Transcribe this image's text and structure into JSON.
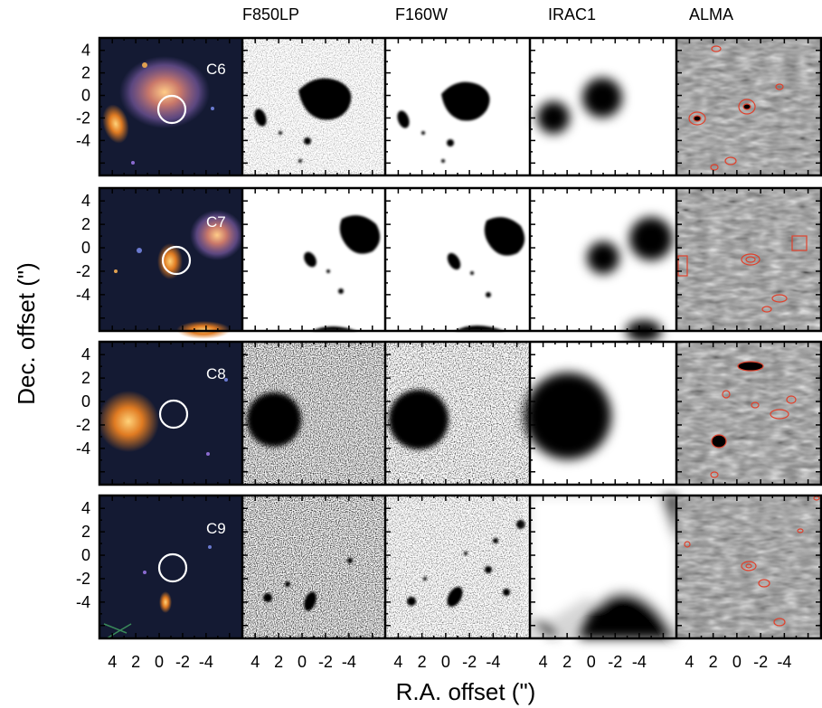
{
  "figure": {
    "columns": [
      "",
      "F850LP",
      "F160W",
      "IRAC1",
      "ALMA"
    ],
    "rows": [
      "C6",
      "C7",
      "C8",
      "C9"
    ],
    "xlabel": "R.A. offset (\")",
    "ylabel": "Dec. offset (\")",
    "x_ticks": [
      "4",
      "2",
      "0",
      "-2",
      "-4"
    ],
    "y_ticks": [
      "4",
      "2",
      "0",
      "-2",
      "-4"
    ],
    "colors": {
      "color_panel_bg": "#141a33",
      "contour": "#e0412c",
      "circle": "#ffffff"
    }
  }
}
